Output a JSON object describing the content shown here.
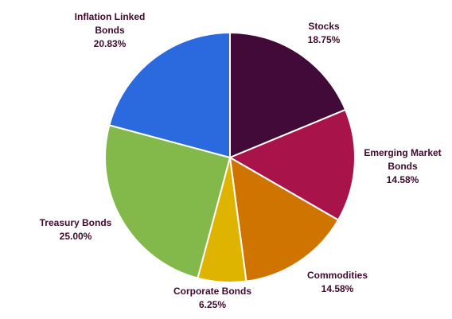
{
  "chart_data": {
    "type": "pie",
    "start_angle_deg": 0,
    "direction": "clockwise",
    "slices": [
      {
        "name": "Stocks",
        "label_lines": [
          "Stocks"
        ],
        "percent_text": "18.75%",
        "value": 18.75,
        "color": "#420a38"
      },
      {
        "name": "Emerging Market Bonds",
        "label_lines": [
          "Emerging Market",
          "Bonds"
        ],
        "percent_text": "14.58%",
        "value": 14.58,
        "color": "#a8134a"
      },
      {
        "name": "Commodities",
        "label_lines": [
          "Commodities"
        ],
        "percent_text": "14.58%",
        "value": 14.58,
        "color": "#d07400"
      },
      {
        "name": "Corporate Bonds",
        "label_lines": [
          "Corporate Bonds"
        ],
        "percent_text": "6.25%",
        "value": 6.25,
        "color": "#dfb400"
      },
      {
        "name": "Treasury Bonds",
        "label_lines": [
          "Treasury Bonds"
        ],
        "percent_text": "25.00%",
        "value": 25.0,
        "color": "#83b84a"
      },
      {
        "name": "Inflation Linked Bonds",
        "label_lines": [
          "Inflation Linked",
          "Bonds"
        ],
        "percent_text": "20.83%",
        "value": 20.83,
        "color": "#2b6ade"
      }
    ]
  }
}
